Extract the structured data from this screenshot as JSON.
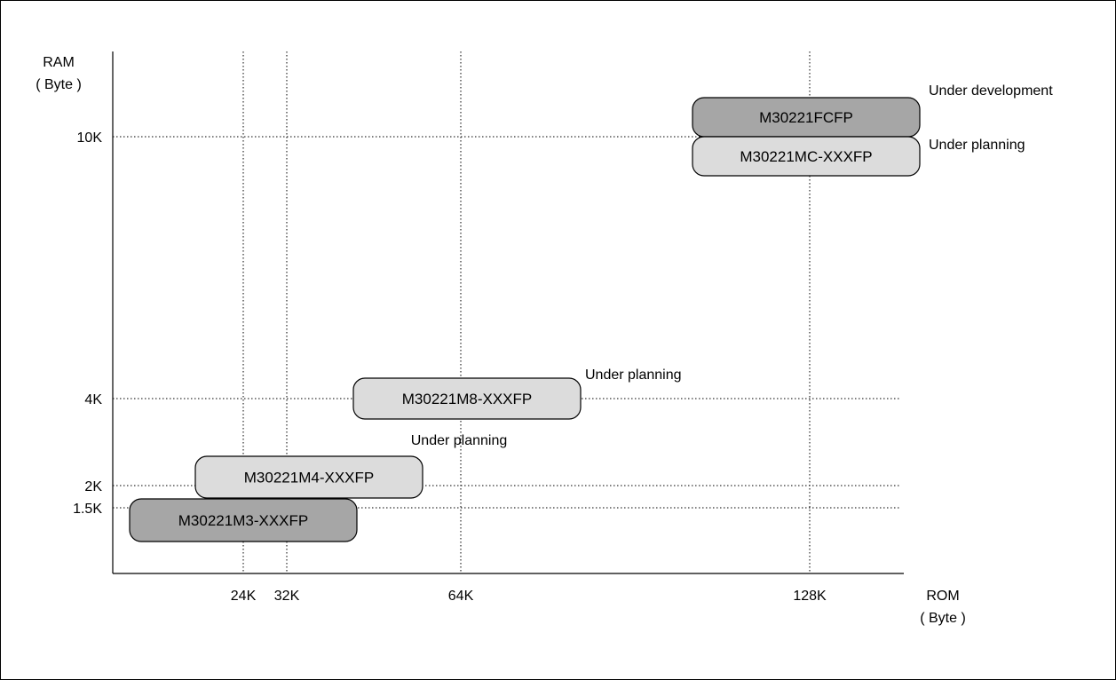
{
  "chart_data": {
    "type": "scatter",
    "title": "",
    "xlabel": "ROM",
    "xlabel_unit": "( Byte )",
    "ylabel": "RAM",
    "ylabel_unit": "( Byte )",
    "x_ticks": [
      "24K",
      "32K",
      "64K",
      "128K"
    ],
    "y_ticks": [
      "1.5K",
      "2K",
      "4K",
      "10K"
    ],
    "grid": "dotted",
    "colors": {
      "dark": "#a6a6a6",
      "light": "#dcdcdc"
    },
    "products": [
      {
        "name": "M30221FCFP",
        "rom": "128K",
        "ram": "10K",
        "status": "Under development",
        "shade": "dark"
      },
      {
        "name": "M30221MC-XXXFP",
        "rom": "128K",
        "ram": "10K",
        "status": "Under planning",
        "shade": "light"
      },
      {
        "name": "M30221M8-XXXFP",
        "rom": "64K",
        "ram": "4K",
        "status": "Under planning",
        "shade": "light"
      },
      {
        "name": "M30221M4-XXXFP",
        "rom": "32K",
        "ram": "2K",
        "status": "Under planning",
        "shade": "light"
      },
      {
        "name": "M30221M3-XXXFP",
        "rom": "24K",
        "ram": "1.5K",
        "status": "",
        "shade": "dark"
      }
    ]
  }
}
